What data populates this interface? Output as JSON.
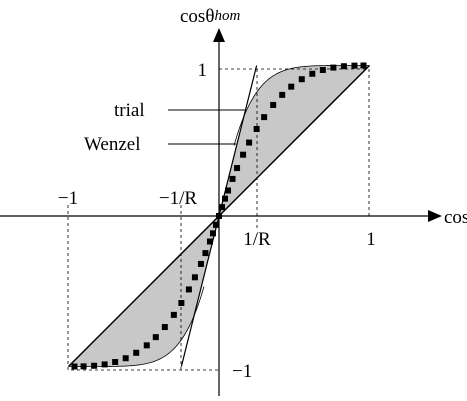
{
  "x_axis_label": "cosθ",
  "y_axis_label": {
    "base": "cosθ",
    "sup": "hom"
  },
  "x_ticks": [
    "−1",
    "−1/R",
    "1/R",
    "1"
  ],
  "y_ticks": [
    "1",
    "−1"
  ],
  "annotations": {
    "trial": "trial",
    "wenzel": "Wenzel"
  }
}
